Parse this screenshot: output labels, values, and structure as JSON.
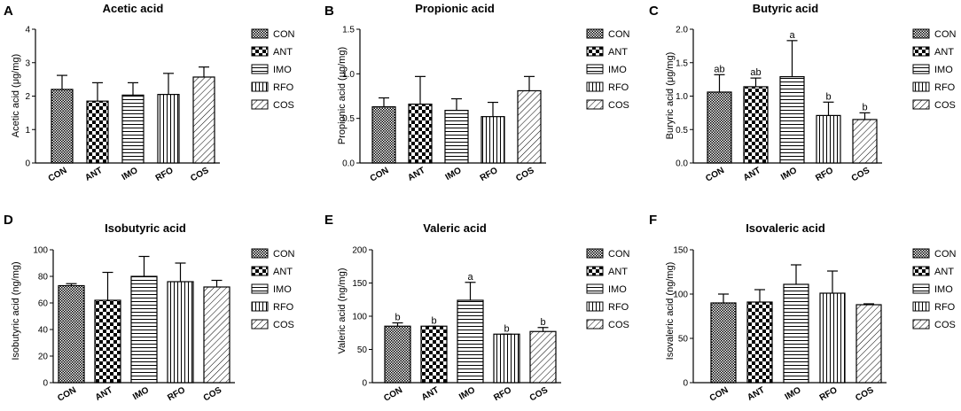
{
  "groups": [
    "CON",
    "ANT",
    "IMO",
    "RFO",
    "COS"
  ],
  "chart_data": [
    {
      "type": "bar",
      "panel": "A",
      "title": "Acetic acid",
      "ylabel": "Acetic acid (μg/mg)",
      "categories": [
        "CON",
        "ANT",
        "IMO",
        "RFO",
        "COS"
      ],
      "values": [
        2.2,
        1.85,
        2.03,
        2.05,
        2.57
      ],
      "errors": [
        0.42,
        0.55,
        0.37,
        0.63,
        0.3
      ],
      "ylim": [
        0,
        4
      ],
      "ticks": [
        "0",
        "1",
        "2",
        "3",
        "4"
      ],
      "letters": [
        "",
        "",
        "",
        "",
        ""
      ],
      "legend": [
        "CON",
        "ANT",
        "IMO",
        "RFO",
        "COS"
      ]
    },
    {
      "type": "bar",
      "panel": "B",
      "title": "Propionic acid",
      "ylabel": "Propionic acid (μg/mg)",
      "categories": [
        "CON",
        "ANT",
        "IMO",
        "RFO",
        "COS"
      ],
      "values": [
        0.63,
        0.66,
        0.59,
        0.52,
        0.81
      ],
      "errors": [
        0.1,
        0.31,
        0.13,
        0.16,
        0.16
      ],
      "ylim": [
        0,
        1.5
      ],
      "ticks": [
        "0.0",
        "0.5",
        "1.0",
        "1.5"
      ],
      "letters": [
        "",
        "",
        "",
        "",
        ""
      ],
      "legend": [
        "CON",
        "ANT",
        "IMO",
        "RFO",
        "COS"
      ]
    },
    {
      "type": "bar",
      "panel": "C",
      "title": "Butyric acid",
      "ylabel": "Buryric acid (μg/mg)",
      "categories": [
        "CON",
        "ANT",
        "IMO",
        "RFO",
        "COS"
      ],
      "values": [
        1.06,
        1.14,
        1.29,
        0.71,
        0.65
      ],
      "errors": [
        0.26,
        0.13,
        0.54,
        0.2,
        0.1
      ],
      "ylim": [
        0,
        2.0
      ],
      "ticks": [
        "0.0",
        "0.5",
        "1.0",
        "1.5",
        "2.0"
      ],
      "letters": [
        "ab",
        "ab",
        "a",
        "b",
        "b"
      ],
      "legend": [
        "CON",
        "ANT",
        "IMO",
        "RFO",
        "COS"
      ]
    },
    {
      "type": "bar",
      "panel": "D",
      "title": "Isobutyric acid",
      "ylabel": "Isobutyric acid (ng/mg)",
      "categories": [
        "CON",
        "ANT",
        "IMO",
        "RFO",
        "COS"
      ],
      "values": [
        73,
        62,
        80,
        76,
        72
      ],
      "errors": [
        1.5,
        21,
        15,
        14,
        5
      ],
      "ylim": [
        0,
        100
      ],
      "ticks": [
        "0",
        "20",
        "40",
        "60",
        "80",
        "100"
      ],
      "letters": [
        "",
        "",
        "",
        "",
        ""
      ],
      "legend": [
        "CON",
        "ANT",
        "IMO",
        "RFO",
        "COS"
      ]
    },
    {
      "type": "bar",
      "panel": "E",
      "title": "Valeric acid",
      "ylabel": "Valeric acid (ng/mg)",
      "categories": [
        "CON",
        "ANT",
        "IMO",
        "RFO",
        "COS"
      ],
      "values": [
        85,
        85,
        124,
        73,
        77
      ],
      "errors": [
        5,
        0,
        27,
        0,
        6
      ],
      "ylim": [
        0,
        200
      ],
      "ticks": [
        "0",
        "50",
        "100",
        "150",
        "200"
      ],
      "letters": [
        "b",
        "b",
        "a",
        "b",
        "b"
      ],
      "legend": [
        "CON",
        "ANT",
        "IMO",
        "RFO",
        "COS"
      ]
    },
    {
      "type": "bar",
      "panel": "F",
      "title": "Isovaleric acid",
      "ylabel": "Isovaleric acid (ng/mg)",
      "categories": [
        "CON",
        "ANT",
        "IMO",
        "RFO",
        "COS"
      ],
      "values": [
        90,
        91,
        111,
        101,
        88
      ],
      "errors": [
        10,
        14,
        22,
        25,
        1
      ],
      "ylim": [
        0,
        150
      ],
      "ticks": [
        "0",
        "50",
        "100",
        "150"
      ],
      "letters": [
        "",
        "",
        "",
        "",
        ""
      ],
      "legend": [
        "CON",
        "ANT",
        "IMO",
        "RFO",
        "COS"
      ]
    }
  ]
}
